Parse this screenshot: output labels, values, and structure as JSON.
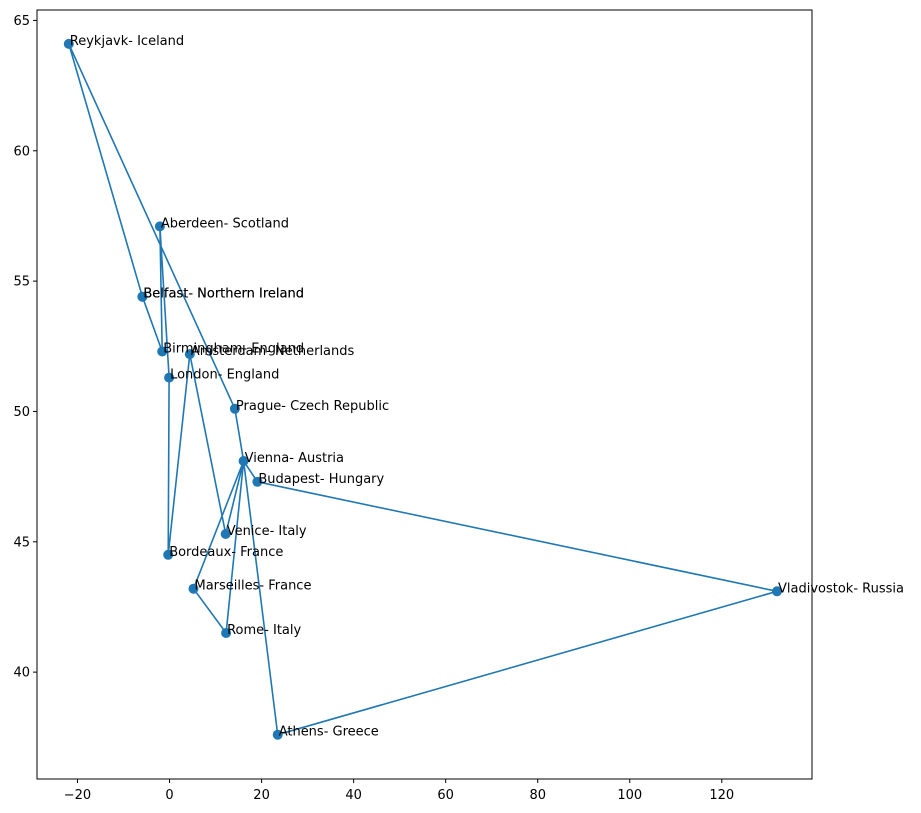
{
  "chart_data": {
    "type": "scatter",
    "title": "",
    "xlabel": "",
    "ylabel": "",
    "xlim": [
      -28.8,
      139.6
    ],
    "ylim": [
      35.9,
      65.4
    ],
    "xticks": [
      -20,
      0,
      20,
      40,
      60,
      80,
      100,
      120
    ],
    "yticks": [
      40,
      45,
      50,
      55,
      60,
      65
    ],
    "xtick_labels": [
      "−20",
      "0",
      "20",
      "40",
      "60",
      "80",
      "100",
      "120"
    ],
    "ytick_labels": [
      "40",
      "45",
      "50",
      "55",
      "60",
      "65"
    ],
    "grid": false,
    "legend": false,
    "color": "#1f77b4",
    "points": [
      {
        "label": "Reykjavk- Iceland",
        "x": -21.9,
        "y": 64.1
      },
      {
        "label": "Aberdeen- Scotland",
        "x": -2.1,
        "y": 57.1
      },
      {
        "label": "Belfast- Northern Ireland",
        "x": -5.9,
        "y": 54.4
      },
      {
        "label": "Belfast- Northern Ireland",
        "x": -5.9,
        "y": 54.4
      },
      {
        "label": "Birmingham- England",
        "x": -1.6,
        "y": 52.3
      },
      {
        "label": "Amsterdam- Netherlands",
        "x": 4.4,
        "y": 52.2
      },
      {
        "label": "London- England",
        "x": -0.1,
        "y": 51.3
      },
      {
        "label": "Prague- Czech Republic",
        "x": 14.2,
        "y": 50.1
      },
      {
        "label": "Vienna- Austria",
        "x": 16.1,
        "y": 48.1
      },
      {
        "label": "Budapest- Hungary",
        "x": 19.1,
        "y": 47.3
      },
      {
        "label": "Venice- Italy",
        "x": 12.2,
        "y": 45.3
      },
      {
        "label": "Bordeaux- France",
        "x": -0.3,
        "y": 44.5
      },
      {
        "label": "Marseilles- France",
        "x": 5.2,
        "y": 43.2
      },
      {
        "label": "Rome- Italy",
        "x": 12.3,
        "y": 41.5
      },
      {
        "label": "Athens- Greece",
        "x": 23.5,
        "y": 37.6
      },
      {
        "label": "Vladivostok- Russia",
        "x": 132.0,
        "y": 43.1
      }
    ],
    "route": [
      [
        -21.9,
        64.1
      ],
      [
        -5.9,
        54.4
      ],
      [
        -1.6,
        52.3
      ],
      [
        -2.1,
        57.1
      ],
      [
        -0.1,
        51.3
      ],
      [
        -0.3,
        44.5
      ],
      [
        4.4,
        52.2
      ],
      [
        12.2,
        45.3
      ],
      [
        16.1,
        48.1
      ],
      [
        12.3,
        41.5
      ],
      [
        5.2,
        43.2
      ],
      [
        16.1,
        48.1
      ],
      [
        23.5,
        37.6
      ],
      [
        132.0,
        43.1
      ],
      [
        19.1,
        47.3
      ],
      [
        16.1,
        48.1
      ],
      [
        14.2,
        50.1
      ],
      [
        -21.9,
        64.1
      ]
    ]
  }
}
